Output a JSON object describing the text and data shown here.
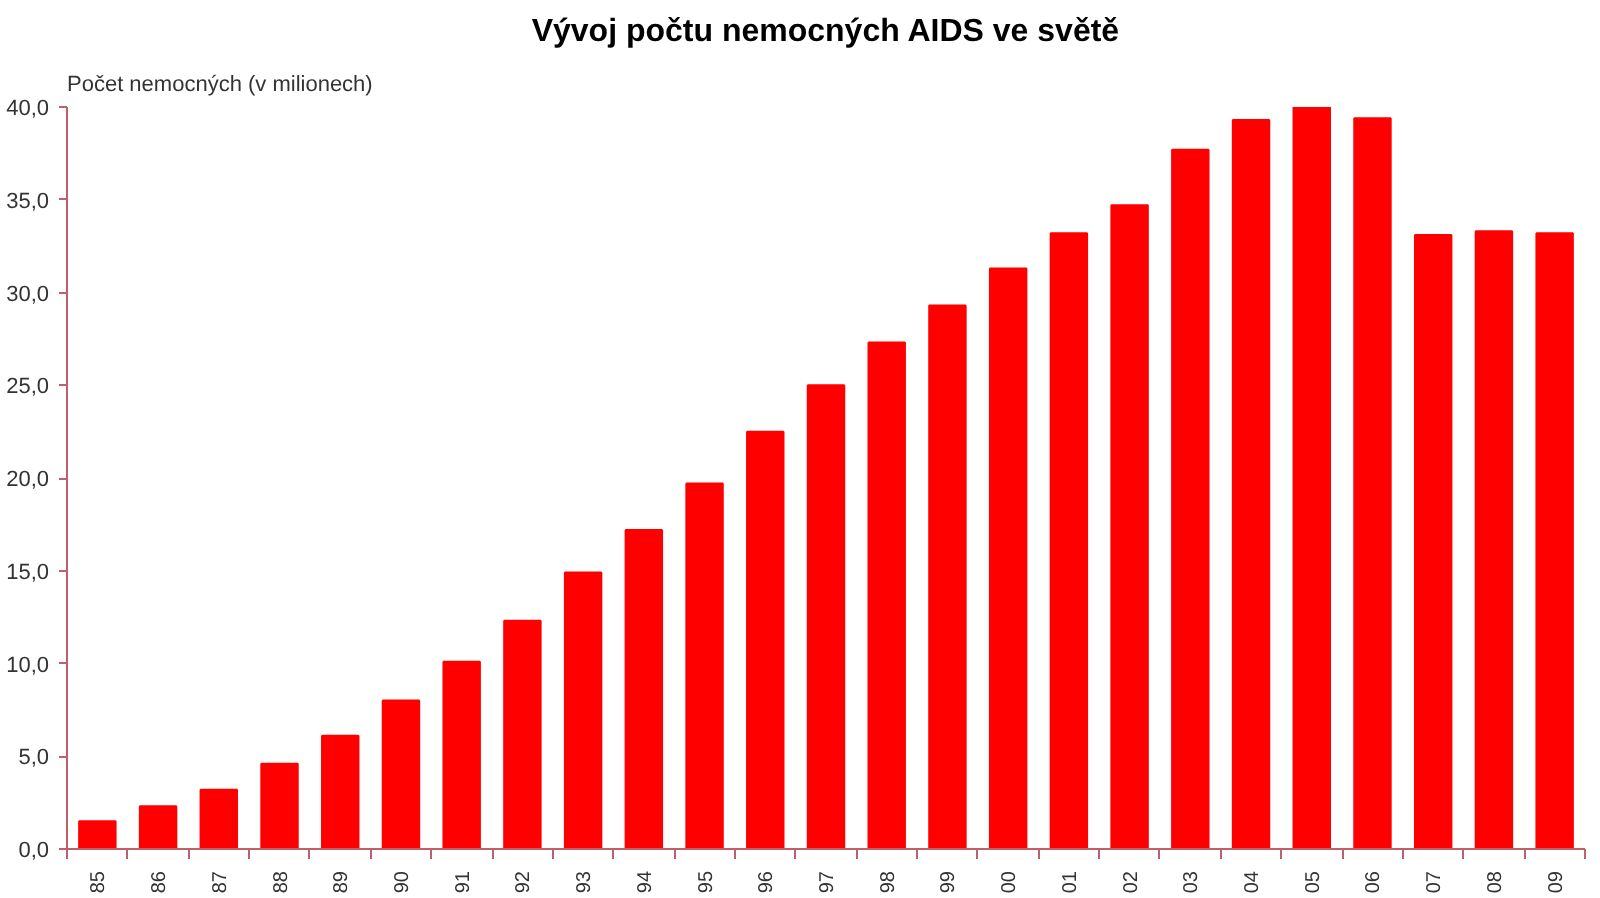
{
  "chart_data": {
    "type": "bar",
    "title": "Vývoj počtu nemocných AIDS ve světě",
    "ylabel": "Počet nemocných (v milionech)",
    "categories": [
      "85",
      "86",
      "87",
      "88",
      "89",
      "90",
      "91",
      "92",
      "93",
      "94",
      "95",
      "96",
      "97",
      "98",
      "99",
      "00",
      "01",
      "02",
      "03",
      "04",
      "05",
      "06",
      "07",
      "08",
      "09"
    ],
    "values": [
      1.5,
      2.3,
      3.2,
      4.6,
      6.1,
      8.0,
      10.1,
      12.3,
      14.9,
      17.2,
      19.7,
      22.5,
      25.0,
      27.3,
      29.3,
      31.3,
      33.2,
      34.7,
      37.7,
      39.3,
      40.0,
      39.4,
      33.1,
      33.3,
      33.2
    ],
    "color": "#ff0000",
    "ylim": [
      0,
      40
    ],
    "yticks": [
      {
        "value": 0,
        "label": "0,0"
      },
      {
        "value": 5,
        "label": "5,0"
      },
      {
        "value": 10,
        "label": "10,0"
      },
      {
        "value": 15,
        "label": "15,0"
      },
      {
        "value": 20,
        "label": "20,0"
      },
      {
        "value": 25,
        "label": "25,0"
      },
      {
        "value": 30,
        "label": "30,0"
      },
      {
        "value": 35,
        "label": "35,0"
      },
      {
        "value": 40,
        "label": "40,0"
      }
    ]
  }
}
